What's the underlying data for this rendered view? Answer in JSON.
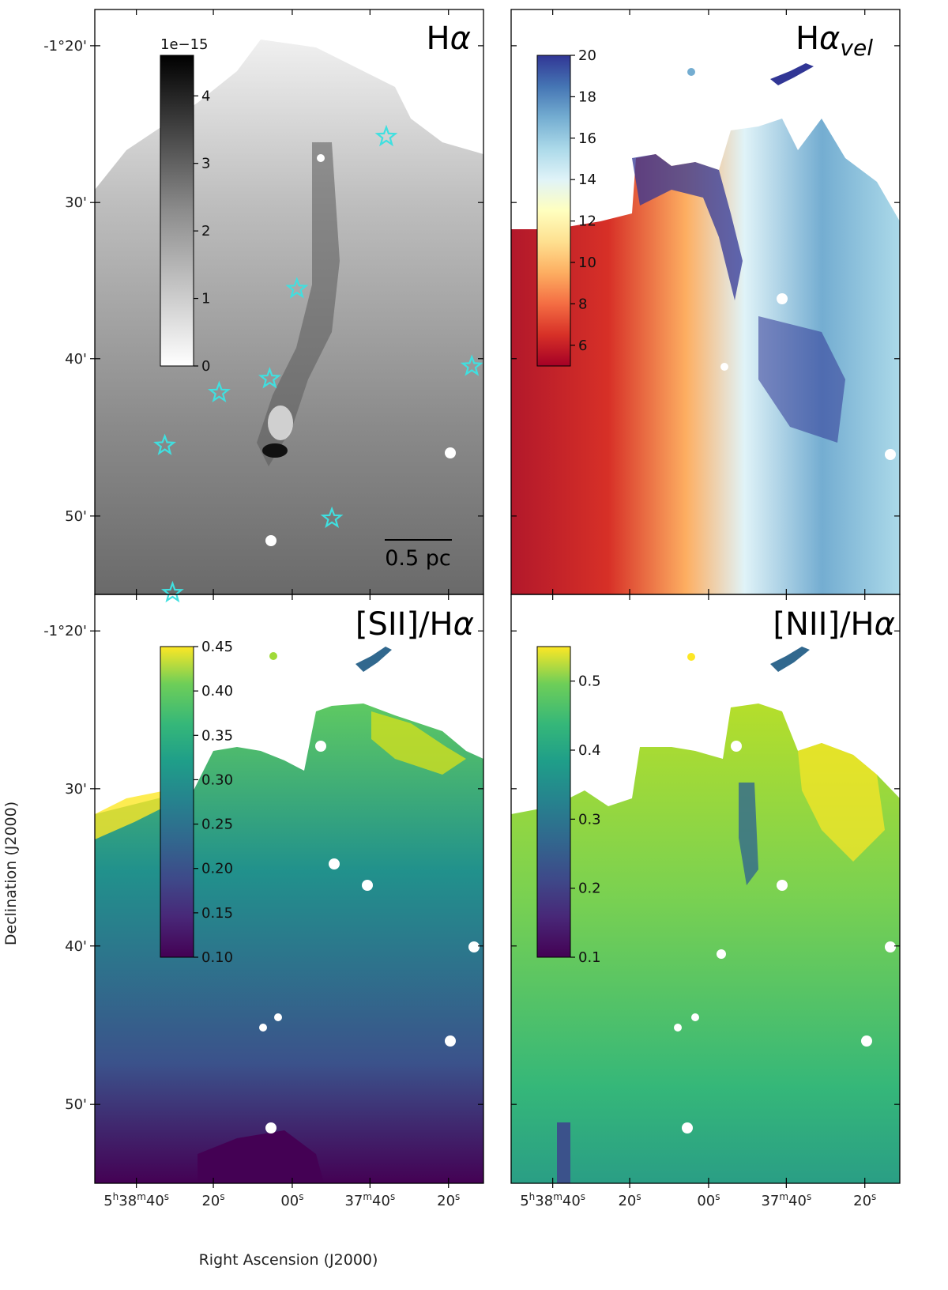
{
  "chart_data": {
    "type": "heatmap",
    "x_axis": {
      "label": "Right Ascension (J2000)",
      "ticks": [
        {
          "main": "5",
          "sup1": "h",
          "mid": "38",
          "sup2": "m",
          "tail": "40",
          "sup3": "s"
        },
        {
          "main": "20",
          "sup1": "s"
        },
        {
          "main": "00",
          "sup1": "s"
        },
        {
          "main": "37",
          "sup1": "m",
          "mid": "40",
          "sup2": "s"
        },
        {
          "main": "20",
          "sup1": "s"
        }
      ]
    },
    "y_axis": {
      "label": "Declination (J2000)",
      "ticks": [
        "-1°20'",
        "30'",
        "40'",
        "50'"
      ]
    },
    "panels": [
      {
        "id": "halpha",
        "title_main": "H",
        "title_greek": "α",
        "title_sub": "",
        "title_prefix": "",
        "colormap": "gray_r",
        "colorbar_ticks": [
          "4",
          "3",
          "2",
          "1",
          "0"
        ],
        "colorbar_tick_values": [
          4,
          3,
          2,
          1,
          0
        ],
        "colorbar_range": [
          0,
          4.6
        ],
        "colorbar_offset_label": "1e−15",
        "scale_bar_label": "0.5 pc",
        "star_markers": [
          {
            "ra_offset": 0.75,
            "dec": -25.2
          },
          {
            "ra_offset": 0.52,
            "dec": -35.0
          },
          {
            "ra_offset": 0.45,
            "dec": -40.8
          },
          {
            "ra_offset": 0.32,
            "dec": -41.7
          },
          {
            "ra_offset": 0.18,
            "dec": -45.1
          },
          {
            "ra_offset": 0.61,
            "dec": -49.8
          },
          {
            "ra_offset": 0.97,
            "dec": -40.0
          },
          {
            "ra_offset": 0.2,
            "dec": -55.0
          }
        ]
      },
      {
        "id": "halpha_vel",
        "title_main": "H",
        "title_greek": "α",
        "title_sub": "vel",
        "title_prefix": "",
        "colormap": "RdYlBu",
        "colorbar_ticks": [
          "20",
          "18",
          "16",
          "14",
          "12",
          "10",
          "8",
          "6"
        ],
        "colorbar_tick_values": [
          20,
          18,
          16,
          14,
          12,
          10,
          8,
          6
        ],
        "colorbar_range": [
          5,
          20
        ]
      },
      {
        "id": "sii_halpha",
        "title_main": "H",
        "title_greek": "α",
        "title_sub": "",
        "title_prefix": "[SII]/",
        "colormap": "viridis",
        "colorbar_ticks": [
          "0.45",
          "0.40",
          "0.35",
          "0.30",
          "0.25",
          "0.20",
          "0.15",
          "0.10"
        ],
        "colorbar_tick_values": [
          0.45,
          0.4,
          0.35,
          0.3,
          0.25,
          0.2,
          0.15,
          0.1
        ],
        "colorbar_range": [
          0.1,
          0.45
        ]
      },
      {
        "id": "nii_halpha",
        "title_main": "H",
        "title_greek": "α",
        "title_sub": "",
        "title_prefix": "[NII]/",
        "colormap": "viridis",
        "colorbar_ticks": [
          "0.5",
          "0.4",
          "0.3",
          "0.2",
          "0.1"
        ],
        "colorbar_tick_values": [
          0.5,
          0.4,
          0.3,
          0.2,
          0.1
        ],
        "colorbar_range": [
          0.1,
          0.55
        ]
      }
    ]
  }
}
